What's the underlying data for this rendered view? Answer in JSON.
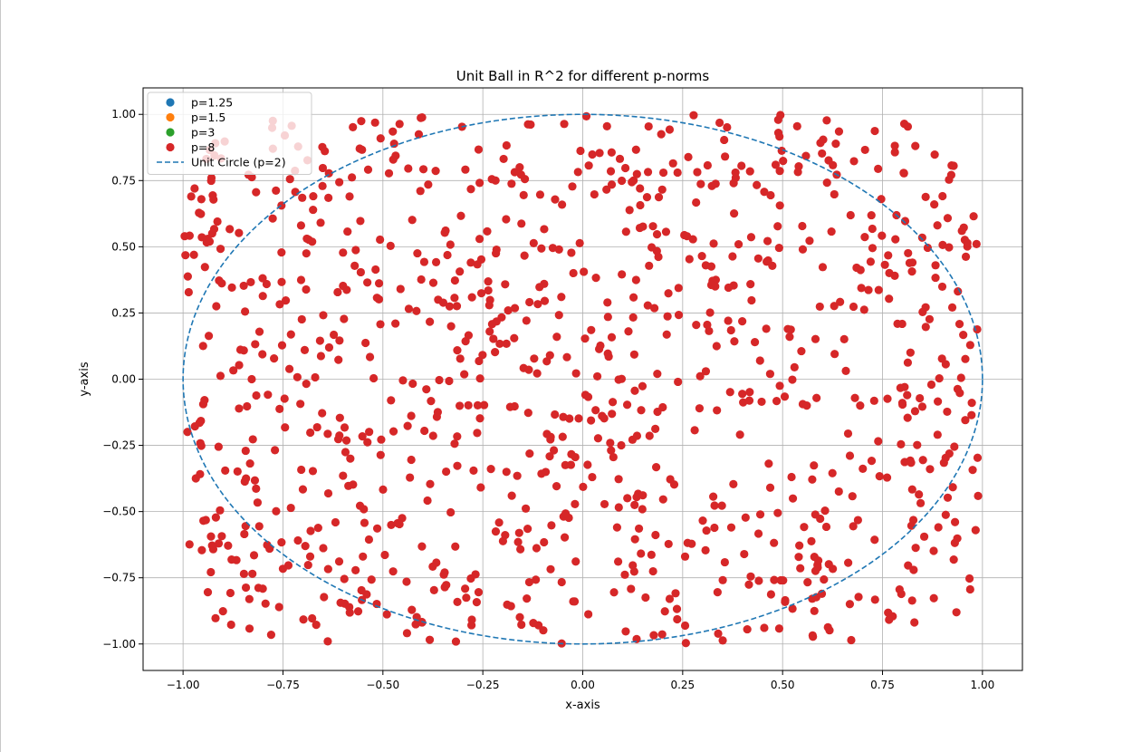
{
  "chart_data": {
    "type": "scatter",
    "title": "Unit Ball in R^2 for different p-norms",
    "xlabel": "x-axis",
    "ylabel": "y-axis",
    "xlim": [
      -1.1,
      1.1
    ],
    "ylim": [
      -1.1,
      1.1
    ],
    "xticks": [
      -1.0,
      -0.75,
      -0.5,
      -0.25,
      0.0,
      0.25,
      0.5,
      0.75,
      1.0
    ],
    "yticks": [
      -1.0,
      -0.75,
      -0.5,
      -0.25,
      0.0,
      0.25,
      0.5,
      0.75,
      1.0
    ],
    "xtick_labels": [
      "−1.00",
      "−0.75",
      "−0.50",
      "−0.25",
      "0.00",
      "0.25",
      "0.50",
      "0.75",
      "1.00"
    ],
    "ytick_labels": [
      "−1.00",
      "−0.75",
      "−0.50",
      "−0.25",
      "0.00",
      "0.25",
      "0.50",
      "0.75",
      "1.00"
    ],
    "grid": true,
    "legend_position": "top-left",
    "series": [
      {
        "name": "p=1.25",
        "color": "#1f77b4",
        "marker": "circle",
        "points": [],
        "hidden_under": "p=8"
      },
      {
        "name": "p=1.5",
        "color": "#ff7f0e",
        "marker": "circle",
        "points": [],
        "hidden_under": "p=8"
      },
      {
        "name": "p=3",
        "color": "#2ca02c",
        "marker": "circle",
        "points": [],
        "hidden_under": "p=8"
      },
      {
        "name": "p=8",
        "color": "#d62728",
        "marker": "circle",
        "generated": "uniform random points in the p=8 unit ball, approx. 1000 points",
        "count": 1000
      },
      {
        "name": "Unit Circle (p=2)",
        "color": "#1f77b4",
        "style": "dashed",
        "type": "line",
        "function": "x^2 + y^2 = 1"
      }
    ]
  }
}
